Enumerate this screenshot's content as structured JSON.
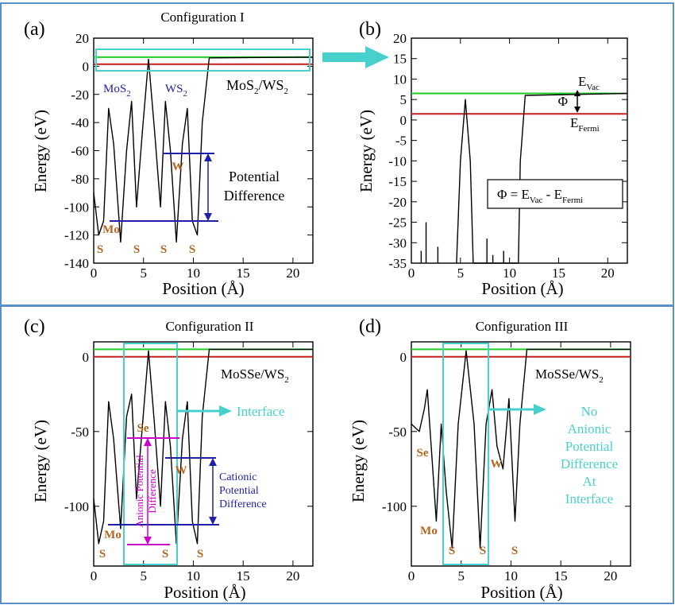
{
  "colors": {
    "curve": "#000000",
    "vacuum_level": "#22cc22",
    "fermi_level": "#c81e1e",
    "highlight": "#48d1cc",
    "cation_annotation": "#1f1fa8",
    "anion_annotation": "#cc00cc",
    "element_labels": "#b5651d",
    "layer_labels": "#1f1fa8",
    "frame": "#5b8fc7"
  },
  "chart_data": [
    {
      "id": "a",
      "panel_label": "(a)",
      "type": "line",
      "title": "Configuration I",
      "xlabel": "Position (Å)",
      "ylabel": "Energy (eV)",
      "xlim": [
        0,
        22
      ],
      "ylim": [
        -140,
        20
      ],
      "xticks": [
        0,
        5,
        10,
        15,
        20
      ],
      "yticks": [
        -140,
        -120,
        -100,
        -80,
        -60,
        -40,
        -20,
        0,
        20
      ],
      "system": "MoS2/WS2",
      "vacuum_level": 6.5,
      "fermi_level": 1.5,
      "potential_profile": [
        [
          0,
          -90
        ],
        [
          0.5,
          -120
        ],
        [
          1,
          -110
        ],
        [
          1.5,
          -30
        ],
        [
          2,
          -55
        ],
        [
          2.7,
          -125
        ],
        [
          3.3,
          -60
        ],
        [
          3.8,
          -25
        ],
        [
          4.3,
          -100
        ],
        [
          4.9,
          -45
        ],
        [
          5.5,
          5
        ],
        [
          6.1,
          -45
        ],
        [
          6.7,
          -100
        ],
        [
          7.2,
          -25
        ],
        [
          7.7,
          -60
        ],
        [
          8.3,
          -125
        ],
        [
          8.9,
          -55
        ],
        [
          9.4,
          -30
        ],
        [
          9.9,
          -110
        ],
        [
          10.4,
          -120
        ],
        [
          10.9,
          -40
        ],
        [
          11.6,
          6
        ],
        [
          22,
          6.5
        ]
      ],
      "element_labels": [
        "S",
        "Mo",
        "S",
        "S",
        "W",
        "S"
      ],
      "layer_labels": [
        "MoS2",
        "WS2"
      ],
      "annotations": [
        "Potential",
        "Difference"
      ]
    },
    {
      "id": "b",
      "panel_label": "(b)",
      "type": "line",
      "title": "",
      "xlabel": "Position (Å)",
      "ylabel": "Energy (eV)",
      "xlim": [
        0,
        22
      ],
      "ylim": [
        -35,
        20
      ],
      "xticks": [
        0,
        5,
        10,
        15,
        20
      ],
      "yticks": [
        -35,
        -30,
        -25,
        -20,
        -15,
        -10,
        -5,
        0,
        5,
        10,
        15,
        20
      ],
      "vacuum_level": 6.5,
      "fermi_level": 1.5,
      "work_function": "Φ",
      "level_labels": [
        "EVac",
        "EFermi"
      ],
      "equation": "Φ = EVac - EFermi",
      "potential_profile": [
        [
          4.6,
          -35
        ],
        [
          5.0,
          -10
        ],
        [
          5.5,
          5
        ],
        [
          6.0,
          -10
        ],
        [
          6.3,
          -35
        ],
        [
          10.9,
          -35
        ],
        [
          11.1,
          -10
        ],
        [
          11.6,
          6
        ],
        [
          22,
          6.5
        ]
      ],
      "spikes": [
        [
          1.0,
          -32
        ],
        [
          1.5,
          -25
        ],
        [
          2.7,
          -31
        ],
        [
          7.7,
          -29
        ],
        [
          8.3,
          -33
        ],
        [
          9.4,
          -32
        ]
      ]
    },
    {
      "id": "c",
      "panel_label": "(c)",
      "type": "line",
      "title": "Configuration II",
      "xlabel": "Position (Å)",
      "ylabel": "Energy (eV)",
      "xlim": [
        0,
        22
      ],
      "ylim": [
        -140,
        10
      ],
      "xticks": [
        0,
        5,
        10,
        15,
        20
      ],
      "yticks": [
        -100,
        -50,
        0
      ],
      "system": "MoSSe/WS2",
      "vacuum_level": 5.0,
      "fermi_level": 0.0,
      "potential_profile": [
        [
          0,
          -95
        ],
        [
          0.5,
          -125
        ],
        [
          1,
          -110
        ],
        [
          1.5,
          -30
        ],
        [
          2,
          -55
        ],
        [
          2.7,
          -115
        ],
        [
          3.3,
          -40
        ],
        [
          3.8,
          -25
        ],
        [
          4.3,
          -95
        ],
        [
          4.9,
          -45
        ],
        [
          5.5,
          4
        ],
        [
          6.1,
          -45
        ],
        [
          6.7,
          -100
        ],
        [
          7.2,
          -30
        ],
        [
          7.7,
          -60
        ],
        [
          8.3,
          -125
        ],
        [
          8.9,
          -55
        ],
        [
          9.4,
          -30
        ],
        [
          9.9,
          -110
        ],
        [
          10.4,
          -125
        ],
        [
          10.9,
          -40
        ],
        [
          11.6,
          5
        ],
        [
          22,
          5
        ]
      ],
      "element_labels": [
        "Se",
        "Mo",
        "S",
        "S",
        "W",
        "S"
      ],
      "annotations": [
        "Interface",
        "Cationic",
        "Potential",
        "Difference",
        "Anionic Potential",
        "Difference"
      ]
    },
    {
      "id": "d",
      "panel_label": "(d)",
      "type": "line",
      "title": "Configuration III",
      "xlabel": "Position (Å)",
      "ylabel": "Energy (eV)",
      "xlim": [
        0,
        22
      ],
      "ylim": [
        -140,
        10
      ],
      "xticks": [
        0,
        5,
        10,
        15,
        20
      ],
      "yticks": [
        -100,
        -50,
        0
      ],
      "system": "MoSSe/WS2",
      "vacuum_level": 5.0,
      "fermi_level": 0.0,
      "potential_profile": [
        [
          0,
          -45
        ],
        [
          0.8,
          -50
        ],
        [
          1.3,
          -35
        ],
        [
          1.6,
          -22
        ],
        [
          2.1,
          -70
        ],
        [
          2.5,
          -110
        ],
        [
          3.0,
          -45
        ],
        [
          3.5,
          -90
        ],
        [
          4.1,
          -128
        ],
        [
          4.7,
          -45
        ],
        [
          5.5,
          4
        ],
        [
          6.3,
          -45
        ],
        [
          6.9,
          -128
        ],
        [
          7.5,
          -45
        ],
        [
          8.1,
          -22
        ],
        [
          8.6,
          -60
        ],
        [
          9.2,
          -75
        ],
        [
          9.8,
          -28
        ],
        [
          10.4,
          -110
        ],
        [
          10.9,
          -45
        ],
        [
          11.6,
          5
        ],
        [
          22,
          5
        ]
      ],
      "element_labels": [
        "Se",
        "Mo",
        "S",
        "S",
        "W",
        "S"
      ],
      "annotations": [
        "No",
        "Anionic",
        "Potential",
        "Difference",
        "At",
        "Interface"
      ]
    }
  ]
}
